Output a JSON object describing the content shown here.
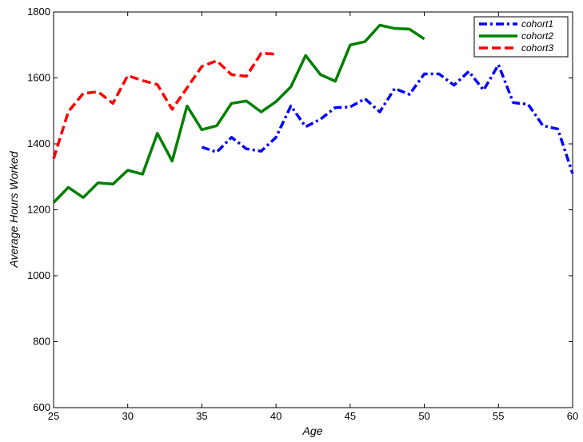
{
  "chart_data": {
    "type": "line",
    "title": "",
    "xlabel": "Age",
    "ylabel": "Average Hours Worked",
    "xlim": [
      25,
      60
    ],
    "ylim": [
      600,
      1800
    ],
    "xticks": [
      "25",
      "30",
      "35",
      "40",
      "45",
      "50",
      "55",
      "60"
    ],
    "yticks": [
      "600",
      "800",
      "1000",
      "1200",
      "1400",
      "1600",
      "1800"
    ],
    "grid": false,
    "legend_position": "top-right",
    "series": [
      {
        "name": "cohort1",
        "color": "#0000ff",
        "dash": "dash-dot",
        "x": [
          35,
          36,
          37,
          38,
          39,
          40,
          41,
          42,
          43,
          44,
          45,
          46,
          47,
          48,
          49,
          50,
          51,
          52,
          53,
          54,
          55,
          56,
          57,
          58,
          59,
          60
        ],
        "y": [
          1390,
          1375,
          1420,
          1385,
          1378,
          1420,
          1515,
          1452,
          1475,
          1510,
          1512,
          1537,
          1497,
          1568,
          1550,
          1612,
          1612,
          1578,
          1620,
          1563,
          1640,
          1525,
          1520,
          1455,
          1445,
          1310
        ]
      },
      {
        "name": "cohort2",
        "color": "#008000",
        "dash": "solid",
        "x": [
          25,
          26,
          27,
          28,
          29,
          30,
          31,
          32,
          33,
          34,
          35,
          36,
          37,
          38,
          39,
          40,
          41,
          42,
          43,
          44,
          45,
          46,
          47,
          48,
          49,
          50
        ],
        "y": [
          1222,
          1268,
          1237,
          1282,
          1278,
          1320,
          1308,
          1432,
          1348,
          1515,
          1443,
          1455,
          1523,
          1530,
          1497,
          1528,
          1573,
          1668,
          1610,
          1590,
          1700,
          1710,
          1760,
          1750,
          1748,
          1718
        ]
      },
      {
        "name": "cohort3",
        "color": "#ff0000",
        "dash": "dashed",
        "x": [
          25,
          26,
          27,
          28,
          29,
          30,
          31,
          32,
          33,
          34,
          35,
          36,
          37,
          38,
          39,
          40
        ],
        "y": [
          1355,
          1498,
          1553,
          1558,
          1523,
          1607,
          1592,
          1580,
          1505,
          1570,
          1635,
          1652,
          1610,
          1605,
          1675,
          1672
        ]
      }
    ]
  }
}
